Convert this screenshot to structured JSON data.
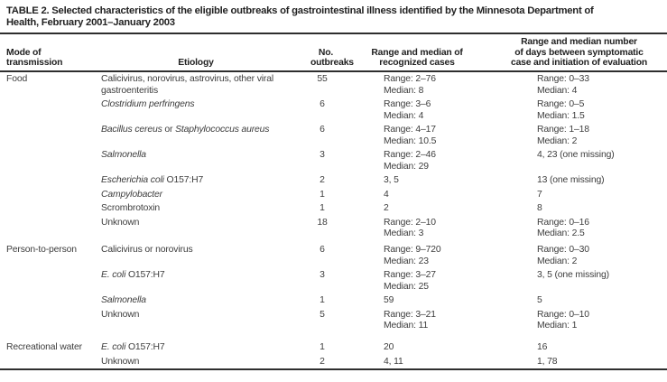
{
  "title_lines": [
    "TABLE 2. Selected characteristics of the eligible outbreaks of gastrointestinal illness identified by the Minnesota Department of",
    "Health, February 2001–January 2003"
  ],
  "table": {
    "columns": [
      {
        "id": "mode",
        "lines": [
          "Mode of",
          "transmission"
        ]
      },
      {
        "id": "etiology",
        "lines": [
          "Etiology"
        ]
      },
      {
        "id": "outbreaks",
        "lines": [
          "No.",
          "outbreaks"
        ]
      },
      {
        "id": "cases",
        "lines": [
          "Range and median of",
          "recognized cases"
        ]
      },
      {
        "id": "days",
        "lines": [
          "Range and median number",
          "of days between symptomatic",
          "case and initiation of evaluation"
        ]
      }
    ],
    "rows": [
      {
        "mode": "Food",
        "etiology": [
          {
            "text": "Calicivirus, norovirus, astrovirus, other viral"
          },
          {
            "br": true
          },
          {
            "text": "gastroenteritis"
          }
        ],
        "outbreaks": "55",
        "cases": [
          "Range: 2–76",
          "Median: 8"
        ],
        "days": [
          "Range: 0–33",
          "Median: 4"
        ]
      },
      {
        "mode": "",
        "etiology": [
          {
            "text": "Clostridium perfringens",
            "italic": true
          }
        ],
        "outbreaks": "6",
        "cases": [
          "Range: 3–6",
          "Median: 4"
        ],
        "days": [
          "Range: 0–5",
          "Median: 1.5"
        ]
      },
      {
        "mode": "",
        "etiology": [
          {
            "text": "Bacillus cereus",
            "italic": true
          },
          {
            "text": " or "
          },
          {
            "text": "Staphylococcus aureus",
            "italic": true
          }
        ],
        "outbreaks": "6",
        "cases": [
          "Range: 4–17",
          "Median: 10.5"
        ],
        "days": [
          "Range: 1–18",
          "Median: 2"
        ]
      },
      {
        "mode": "",
        "etiology": [
          {
            "text": "Salmonella",
            "italic": true
          }
        ],
        "outbreaks": "3",
        "cases": [
          "Range: 2–46",
          "Median: 29"
        ],
        "days": [
          "4, 23 (one missing)"
        ]
      },
      {
        "mode": "",
        "etiology": [
          {
            "text": "Escherichia coli",
            "italic": true
          },
          {
            "text": " O157:H7"
          }
        ],
        "outbreaks": "2",
        "cases": [
          "3, 5"
        ],
        "days": [
          "13 (one missing)"
        ]
      },
      {
        "mode": "",
        "etiology": [
          {
            "text": "Campylobacter",
            "italic": true
          }
        ],
        "outbreaks": "1",
        "cases": [
          "4"
        ],
        "days": [
          "7"
        ]
      },
      {
        "mode": "",
        "etiology": [
          {
            "text": "Scrombrotoxin"
          }
        ],
        "outbreaks": "1",
        "cases": [
          "2"
        ],
        "days": [
          "8"
        ]
      },
      {
        "mode": "",
        "etiology": [
          {
            "text": "Unknown"
          }
        ],
        "outbreaks": "18",
        "cases": [
          "Range: 2–10",
          "Median: 3"
        ],
        "days": [
          "Range: 0–16",
          "Median: 2.5"
        ]
      },
      {
        "mode": "Person-to-person",
        "group_gap": "small",
        "etiology": [
          {
            "text": "Calicivirus or norovirus"
          }
        ],
        "outbreaks": "6",
        "cases": [
          "Range: 9–720",
          "Median: 23"
        ],
        "days": [
          "Range: 0–30",
          "Median: 2"
        ]
      },
      {
        "mode": "",
        "etiology": [
          {
            "text": "E. coli",
            "italic": true
          },
          {
            "text": " O157:H7"
          }
        ],
        "outbreaks": "3",
        "cases": [
          "Range: 3–27",
          "Median: 25"
        ],
        "days": [
          "3, 5 (one missing)"
        ]
      },
      {
        "mode": "",
        "etiology": [
          {
            "text": "Salmonella",
            "italic": true
          }
        ],
        "outbreaks": "1",
        "cases": [
          "59"
        ],
        "days": [
          "5"
        ]
      },
      {
        "mode": "",
        "etiology": [
          {
            "text": "Unknown"
          }
        ],
        "outbreaks": "5",
        "cases": [
          "Range: 3–21",
          "Median: 11"
        ],
        "days": [
          "Range: 0–10",
          "Median: 1"
        ]
      },
      {
        "mode": "Recreational water",
        "group_gap": "large",
        "etiology": [
          {
            "text": "E. coli",
            "italic": true
          },
          {
            "text": " O157:H7"
          }
        ],
        "outbreaks": "1",
        "cases": [
          "20"
        ],
        "days": [
          "16"
        ]
      },
      {
        "mode": "",
        "etiology": [
          {
            "text": "Unknown"
          }
        ],
        "outbreaks": "2",
        "cases": [
          "4, 11"
        ],
        "days": [
          "1, 78"
        ]
      }
    ]
  }
}
